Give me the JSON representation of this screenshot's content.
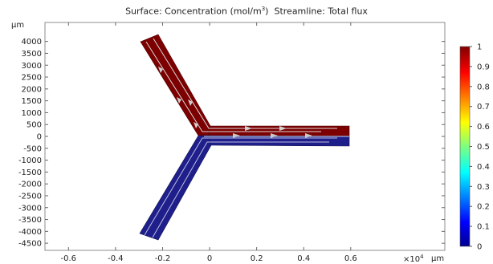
{
  "title": {
    "surface_label": "Surface: Concentration (mol/m",
    "surface_sup": "3",
    "surface_close": ")",
    "streamline_label": "Streamline: Total flux"
  },
  "chart_data": {
    "type": "heatmap",
    "title": "Surface: Concentration (mol/m3)  Streamline: Total flux",
    "x_axis": {
      "unit_label": "µm",
      "multiplier": "×10",
      "multiplier_exp": "4",
      "range": [
        -0.7,
        1.0
      ],
      "ticks": [
        -0.6,
        -0.4,
        -0.2,
        0,
        0.2,
        0.4,
        0.6
      ],
      "tick_labels": [
        "-0.6",
        "-0.4",
        "-0.2",
        "0",
        "0.2",
        "0.4",
        "0.6"
      ]
    },
    "y_axis": {
      "unit_label": "µm",
      "range": [
        -4800,
        4800
      ],
      "ticks": [
        4000,
        3500,
        3000,
        2500,
        2000,
        1500,
        1000,
        500,
        0,
        -500,
        -1000,
        -1500,
        -2000,
        -2500,
        -3000,
        -3500,
        -4000,
        -4500
      ],
      "tick_labels": [
        "4000",
        "3500",
        "3000",
        "2500",
        "2000",
        "1500",
        "1000",
        "500",
        "0",
        "-500",
        "-1000",
        "-1500",
        "-2000",
        "-2500",
        "-3000",
        "-3500",
        "-4000",
        "-4500"
      ]
    },
    "colorbar": {
      "range": [
        0,
        1
      ],
      "tick_labels": [
        "1",
        "0.9",
        "0.8",
        "0.7",
        "0.6",
        "0.5",
        "0.4",
        "0.3",
        "0.2",
        "0.1",
        "0"
      ],
      "ticks": [
        1,
        0.9,
        0.8,
        0.7,
        0.6,
        0.5,
        0.4,
        0.3,
        0.2,
        0.1,
        0
      ]
    },
    "regions": [
      {
        "name": "upper-left inlet",
        "concentration": 1,
        "color": "#7d0000"
      },
      {
        "name": "lower-left inlet",
        "concentration": 0,
        "color": "#1f1f8c"
      },
      {
        "name": "outlet upper half",
        "concentration": 1,
        "color": "#7d0000"
      },
      {
        "name": "outlet lower half",
        "concentration": 0,
        "color": "#1f1f8c"
      }
    ]
  }
}
